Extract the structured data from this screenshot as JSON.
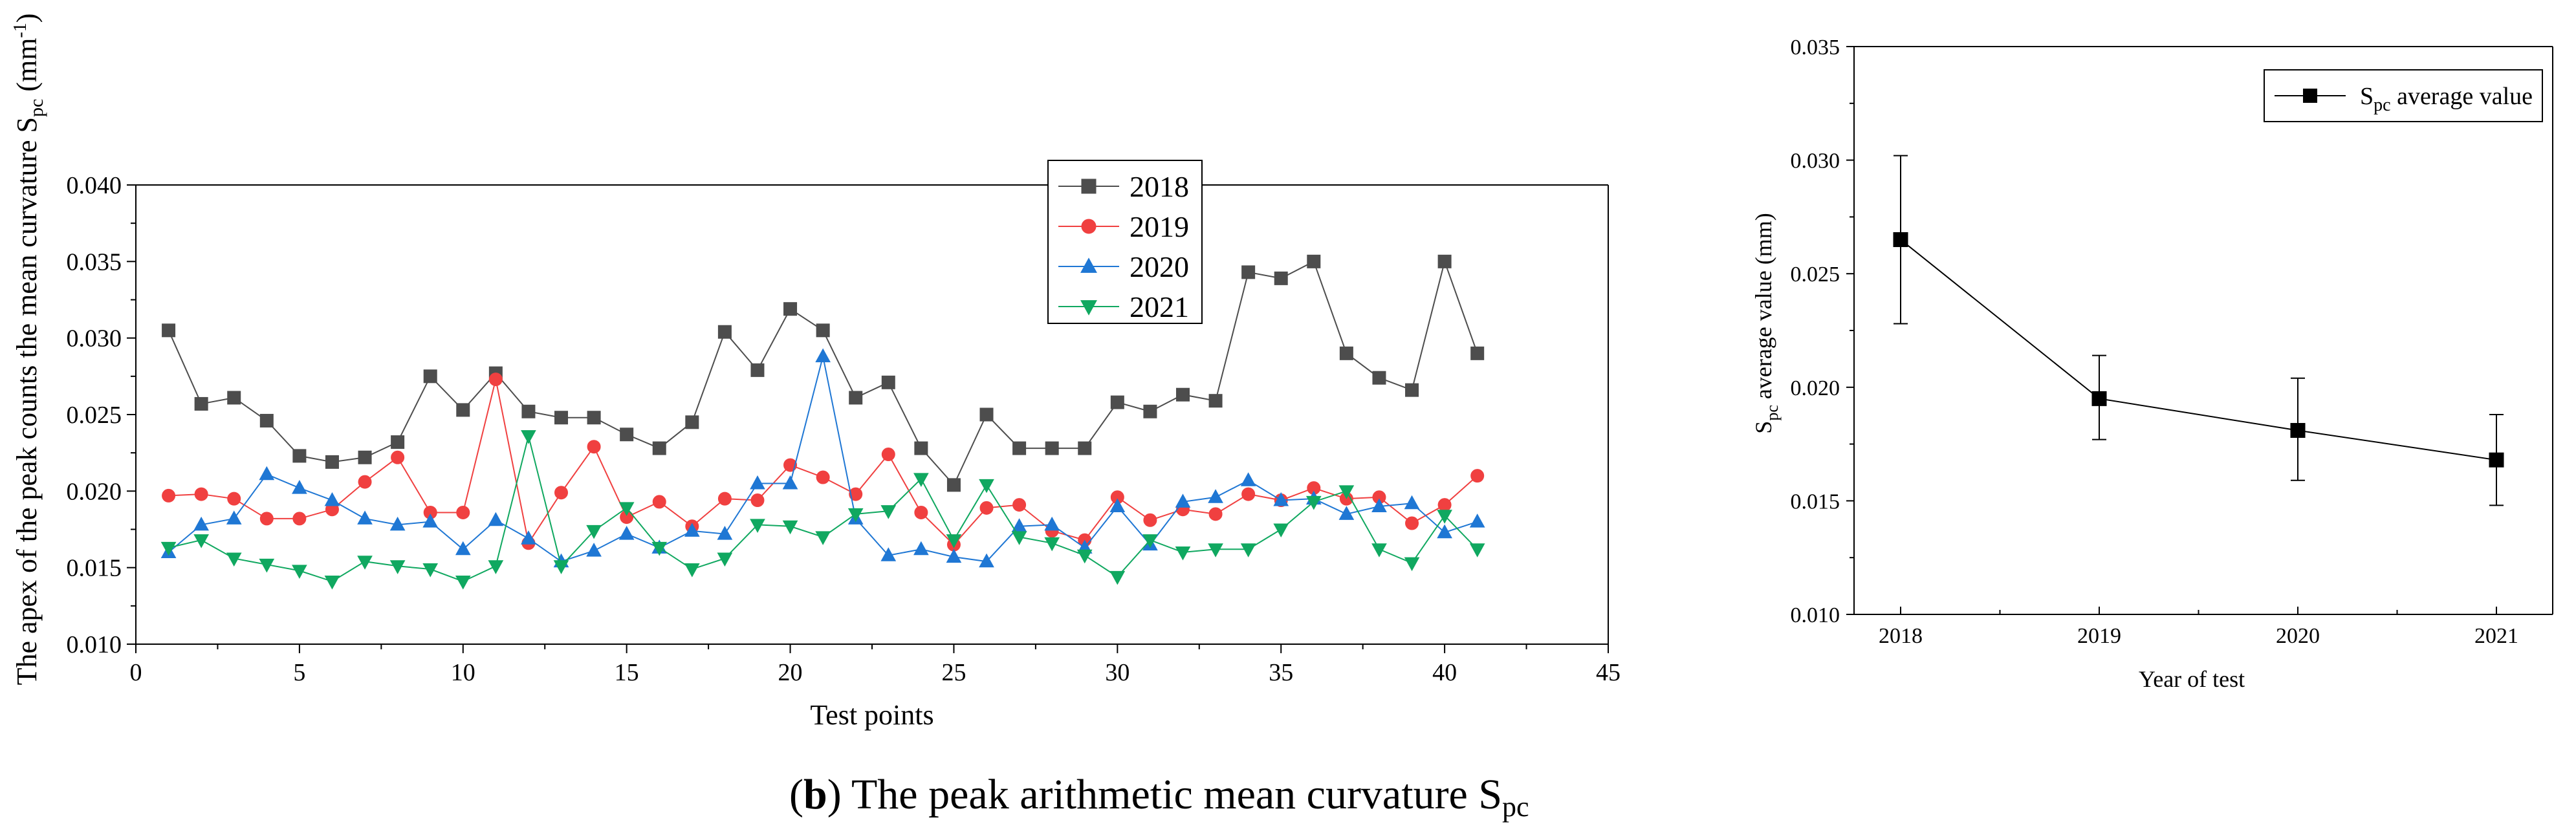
{
  "chart_data": [
    {
      "type": "line",
      "title": "",
      "xlabel": "Test points",
      "ylabel": "The apex of the peak counts the mean curvature S",
      "ylabel_subscript": "pc",
      "ylabel_unit_open": " (mm",
      "ylabel_unit_sup": "-1",
      "ylabel_unit_close": ")",
      "xlim": [
        0,
        45
      ],
      "ylim": [
        0.01,
        0.04
      ],
      "xticks": [
        "0",
        "5",
        "10",
        "15",
        "20",
        "25",
        "30",
        "35",
        "40",
        "45"
      ],
      "yticks": [
        "0.010",
        "0.015",
        "0.020",
        "0.025",
        "0.030",
        "0.035",
        "0.040"
      ],
      "legend_position": "top-right",
      "x": [
        1,
        2,
        3,
        4,
        5,
        6,
        7,
        8,
        9,
        10,
        11,
        12,
        13,
        14,
        15,
        16,
        17,
        18,
        19,
        20,
        21,
        22,
        23,
        24,
        25,
        26,
        27,
        28,
        29,
        30,
        31,
        32,
        33,
        34,
        35,
        36,
        37,
        38,
        39,
        40,
        41
      ],
      "series": [
        {
          "name": "2018",
          "color": "#4d4d4d",
          "marker": "square",
          "values": [
            0.0305,
            0.0257,
            0.0261,
            0.0246,
            0.0223,
            0.0219,
            0.0222,
            0.0232,
            0.0275,
            0.0253,
            0.0277,
            0.0252,
            0.0248,
            0.0248,
            0.0237,
            0.0228,
            0.0245,
            0.0304,
            0.0279,
            0.0319,
            0.0305,
            0.0261,
            0.0271,
            0.0228,
            0.0204,
            0.025,
            0.0228,
            0.0228,
            0.0228,
            0.0258,
            0.0252,
            0.0263,
            0.0259,
            0.0343,
            0.0339,
            0.035,
            0.029,
            0.0274,
            0.0266,
            0.035,
            0.029
          ]
        },
        {
          "name": "2019",
          "color": "#f04040",
          "marker": "circle",
          "values": [
            0.0197,
            0.0198,
            0.0195,
            0.0182,
            0.0182,
            0.0188,
            0.0206,
            0.0222,
            0.0186,
            0.0186,
            0.0273,
            0.0166,
            0.0199,
            0.0229,
            0.0183,
            0.0193,
            0.0177,
            0.0195,
            0.0194,
            0.0217,
            0.0209,
            0.0198,
            0.0224,
            0.0186,
            0.0165,
            0.0189,
            0.0191,
            0.0174,
            0.0168,
            0.0196,
            0.0181,
            0.0188,
            0.0185,
            0.0198,
            0.0194,
            0.0202,
            0.0195,
            0.0196,
            0.0179,
            0.0191,
            0.021
          ]
        },
        {
          "name": "2020",
          "color": "#1f77d4",
          "marker": "triangle-up",
          "values": [
            0.016,
            0.0178,
            0.0182,
            0.0211,
            0.0202,
            0.0194,
            0.0182,
            0.0178,
            0.018,
            0.0162,
            0.0181,
            0.0169,
            0.0154,
            0.0161,
            0.0172,
            0.0163,
            0.0174,
            0.0172,
            0.0205,
            0.0205,
            0.0288,
            0.0182,
            0.0158,
            0.0162,
            0.0157,
            0.0154,
            0.0177,
            0.0178,
            0.0163,
            0.019,
            0.0165,
            0.0193,
            0.0196,
            0.0207,
            0.0194,
            0.0195,
            0.0185,
            0.019,
            0.0192,
            0.0173,
            0.018
          ]
        },
        {
          "name": "2021",
          "color": "#10a860",
          "marker": "triangle-down",
          "values": [
            0.0163,
            0.0168,
            0.0156,
            0.0152,
            0.0148,
            0.0141,
            0.0154,
            0.0151,
            0.0149,
            0.0141,
            0.0151,
            0.0236,
            0.0151,
            0.0174,
            0.0189,
            0.0163,
            0.0149,
            0.0156,
            0.0178,
            0.0177,
            0.017,
            0.0185,
            0.0187,
            0.0208,
            0.0168,
            0.0204,
            0.017,
            0.0166,
            0.0158,
            0.0144,
            0.0168,
            0.016,
            0.0162,
            0.0162,
            0.0175,
            0.0193,
            0.02,
            0.0162,
            0.0153,
            0.0184,
            0.0162
          ]
        }
      ]
    },
    {
      "type": "line",
      "title": "",
      "xlabel": "Year of test",
      "ylabel": "S",
      "ylabel_subscript": "pc",
      "ylabel_rest": " average value  (mm)",
      "ylim": [
        0.01,
        0.035
      ],
      "yticks": [
        "0.010",
        "0.015",
        "0.020",
        "0.025",
        "0.030",
        "0.035"
      ],
      "categories": [
        "2018",
        "2019",
        "2020",
        "2021"
      ],
      "legend_position": "top-right",
      "series": [
        {
          "name": "S",
          "name_subscript": "pc",
          "name_rest": " average value",
          "color": "#000000",
          "marker": "square",
          "values": [
            0.0265,
            0.0195,
            0.0181,
            0.0168
          ],
          "error_low": [
            0.0228,
            0.0177,
            0.0159,
            0.0148
          ],
          "error_high": [
            0.0302,
            0.0214,
            0.0204,
            0.0188
          ]
        }
      ]
    }
  ],
  "caption": {
    "open_paren": "(",
    "letter": "b",
    "close_paren": ")",
    "text": " The peak arithmetic mean curvature S",
    "subscript": "pc"
  }
}
